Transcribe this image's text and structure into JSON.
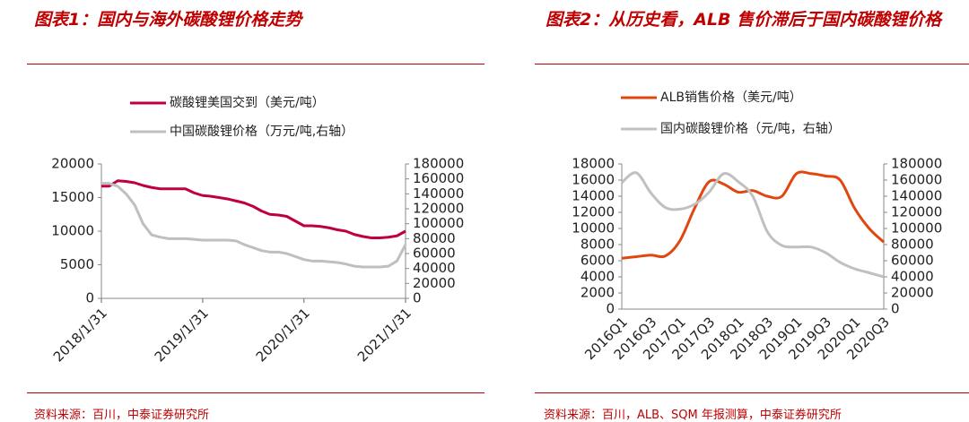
{
  "chart_data": [
    {
      "type": "line",
      "title": "图表1：国内与海外碳酸锂价格走势",
      "source": "资料来源：百川，中泰证券研究所",
      "x": [
        "2018/1/31",
        "2018/2/28",
        "2018/3/31",
        "2018/4/30",
        "2018/5/31",
        "2018/6/30",
        "2018/7/31",
        "2018/8/31",
        "2018/9/30",
        "2018/10/31",
        "2018/11/30",
        "2018/12/31",
        "2019/1/31",
        "2019/2/28",
        "2019/3/31",
        "2019/4/30",
        "2019/5/31",
        "2019/6/30",
        "2019/7/31",
        "2019/8/31",
        "2019/9/30",
        "2019/10/31",
        "2019/11/30",
        "2019/12/31",
        "2020/1/31",
        "2020/2/29",
        "2020/3/31",
        "2020/4/30",
        "2020/5/31",
        "2020/6/30",
        "2020/7/31",
        "2020/8/31",
        "2020/9/30",
        "2020/10/31",
        "2020/11/30",
        "2020/12/31",
        "2021/1/31"
      ],
      "xlim": [
        "2018/1/31",
        "2021/1/31"
      ],
      "xticks": [
        "2018/1/31",
        "2019/1/31",
        "2020/1/31",
        "2021/1/31"
      ],
      "series": [
        {
          "name": "碳酸锂美国交到（美元/吨）",
          "color": "#c0003c",
          "values": [
            16700,
            16700,
            17500,
            17400,
            17200,
            16800,
            16500,
            16300,
            16300,
            16300,
            16300,
            15700,
            15300,
            15200,
            15000,
            14800,
            14500,
            14200,
            13700,
            13000,
            12500,
            12400,
            12200,
            11500,
            10800,
            10800,
            10700,
            10500,
            10200,
            10000,
            9500,
            9200,
            9000,
            9000,
            9100,
            9300,
            10000
          ]
        },
        {
          "name": "中国碳酸锂价格（万元/吨,右轴）",
          "color": "#bfbfbf",
          "axis": "y2",
          "values": [
            154000,
            154000,
            150000,
            140000,
            125000,
            100000,
            85000,
            82000,
            80000,
            80000,
            80000,
            79000,
            78000,
            78000,
            78000,
            78000,
            77000,
            72000,
            68000,
            64000,
            62000,
            62000,
            60000,
            56000,
            52000,
            50000,
            50000,
            49000,
            48000,
            46000,
            43000,
            42000,
            42000,
            42000,
            43000,
            50000,
            72000
          ]
        }
      ],
      "ylim": [
        0,
        20000
      ],
      "yticks": [
        0,
        5000,
        10000,
        15000,
        20000
      ],
      "y2lim": [
        0,
        180000
      ],
      "y2ticks": [
        0,
        20000,
        40000,
        60000,
        80000,
        100000,
        120000,
        140000,
        160000,
        180000
      ]
    },
    {
      "type": "line",
      "title": "图表2：从历史看，ALB 售价滞后于国内碳酸锂价格",
      "source": "资料来源：百川，ALB、SQM 年报测算，中泰证券研究所",
      "smooth": true,
      "categories": [
        "2016Q1",
        null,
        "2016Q3",
        null,
        "2017Q1",
        null,
        "2017Q3",
        null,
        "2018Q1",
        null,
        "2018Q3",
        null,
        "2019Q1",
        null,
        "2019Q3",
        null,
        "2020Q1",
        null,
        "2020Q3"
      ],
      "series": [
        {
          "name": "ALB销售价格（美元/吨）",
          "color": "#e0460e",
          "values": [
            6300,
            6500,
            6700,
            6600,
            8500,
            12500,
            15800,
            15500,
            14500,
            14700,
            14000,
            14000,
            16800,
            16800,
            16500,
            16000,
            12500,
            10000,
            8300
          ]
        },
        {
          "name": "国内碳酸锂价格（元/吨，右轴）",
          "color": "#c0c0c0",
          "axis": "y2",
          "values": [
            157000,
            169000,
            144000,
            126000,
            124000,
            130000,
            145000,
            168000,
            158000,
            140000,
            96000,
            79000,
            77000,
            77000,
            70000,
            58000,
            50000,
            45000,
            40000
          ]
        }
      ],
      "ylim": [
        0,
        18000
      ],
      "yticks": [
        0,
        2000,
        4000,
        6000,
        8000,
        10000,
        12000,
        14000,
        16000,
        18000
      ],
      "y2lim": [
        0,
        180000
      ],
      "y2ticks": [
        0,
        20000,
        40000,
        60000,
        80000,
        100000,
        120000,
        140000,
        160000,
        180000
      ]
    }
  ]
}
